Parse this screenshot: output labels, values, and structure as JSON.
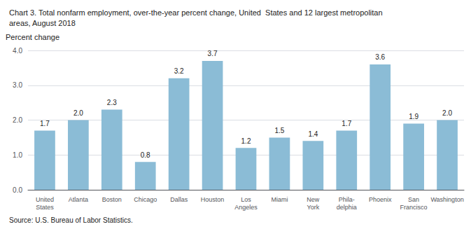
{
  "chart_data": {
    "type": "bar",
    "title": "Chart 3. Total nonfarm employment, over-the-year percent change, United  States and 12 largest metropolitan\nareas, August 2018",
    "y_label": "Percent change",
    "annotations": [
      "Source: U.S. Bureau of Labor Statistics."
    ],
    "categories": [
      "United\nStates",
      "Atlanta",
      "Boston",
      "Chicago",
      "Dallas",
      "Houston",
      "Los\nAngeles",
      "Miami",
      "New\nYork",
      "Phila-\ndelphia",
      "Phoenix",
      "San\nFrancisco",
      "Washington"
    ],
    "values": [
      1.7,
      2.0,
      2.3,
      0.8,
      3.2,
      3.7,
      1.2,
      1.5,
      1.4,
      1.7,
      3.6,
      1.9,
      2.0
    ],
    "value_labels": [
      "1.7",
      "2.0",
      "2.3",
      "0.8",
      "3.2",
      "3.7",
      "1.2",
      "1.5",
      "1.4",
      "1.7",
      "3.6",
      "1.9",
      "2.0"
    ],
    "color": "#8BBCD6",
    "ylim": [
      0,
      4.0
    ],
    "yticks": [
      {
        "value": 0.0,
        "label": "0.0"
      },
      {
        "value": 1.0,
        "label": "1.0"
      },
      {
        "value": 2.0,
        "label": "2.0"
      },
      {
        "value": 3.0,
        "label": "3.0"
      },
      {
        "value": 4.0,
        "label": "4.0"
      }
    ],
    "grid": true,
    "data_labels": true
  }
}
